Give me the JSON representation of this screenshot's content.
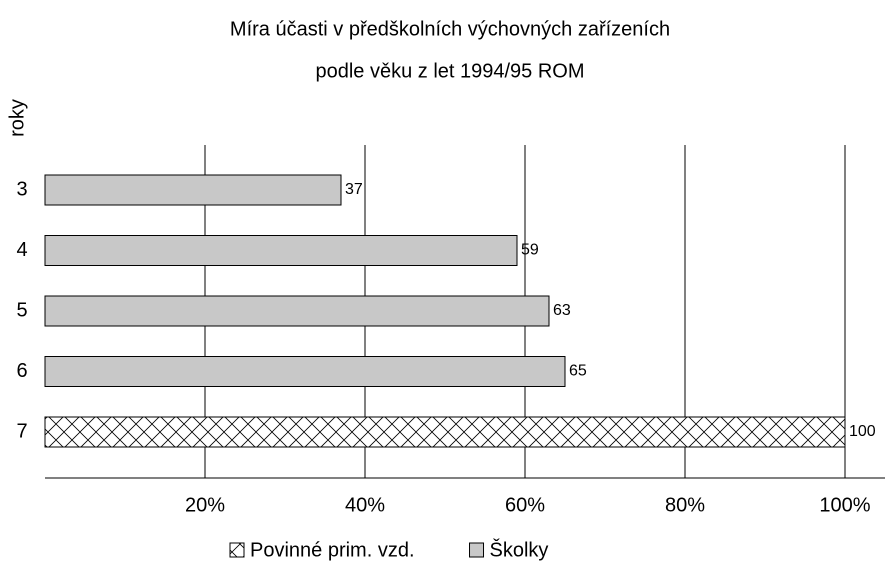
{
  "chart_data": {
    "type": "barh",
    "title": [
      "Míra účasti v předškolních výchovných zařízeních",
      "podle věku z let 1994/95 ROM"
    ],
    "ylabel": "roky",
    "categories": [
      "3",
      "4",
      "5",
      "6",
      "7"
    ],
    "series": [
      {
        "name": "Povinné prim. vzd.",
        "color": "#000000",
        "hatch": "cross",
        "values": [
          null,
          null,
          null,
          null,
          100
        ]
      },
      {
        "name": "Školky",
        "color": "#c8c8c8",
        "values": [
          37,
          59,
          63,
          65,
          null
        ]
      }
    ],
    "xlim": [
      0,
      100
    ],
    "xticks": [
      {
        "value": 20,
        "label": "20%"
      },
      {
        "value": 40,
        "label": "40%"
      },
      {
        "value": 60,
        "label": "60%"
      },
      {
        "value": 80,
        "label": "80%"
      },
      {
        "value": 100,
        "label": "100%"
      }
    ],
    "grid": true,
    "legend": "bottom"
  }
}
